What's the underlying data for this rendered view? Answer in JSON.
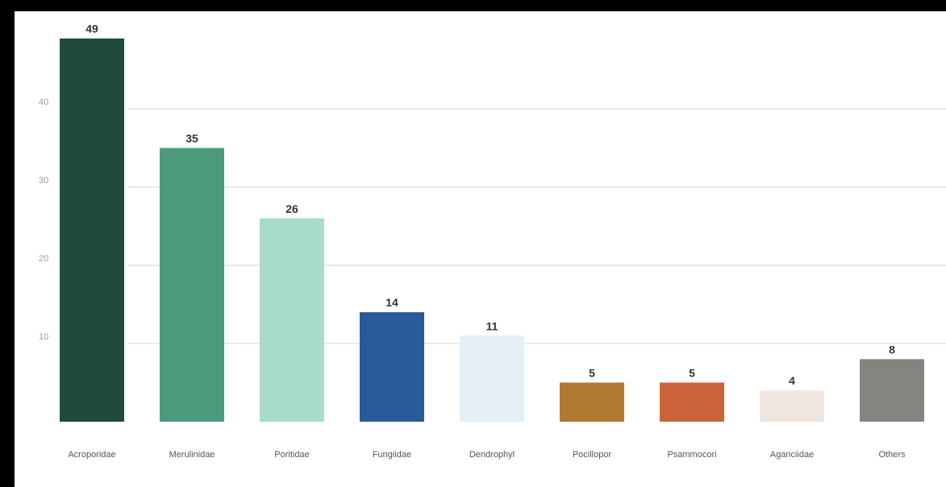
{
  "chart_data": {
    "type": "bar",
    "title": "",
    "xlabel": "",
    "ylabel": "",
    "categories": [
      "Acroporidae",
      "Merulinidae",
      "Poritidae",
      "Fungiidae",
      "Dendrophyl",
      "Pocillopor",
      "Psammocori",
      "Agariciidae",
      "Others"
    ],
    "values": [
      49,
      35,
      26,
      14,
      11,
      5,
      5,
      4,
      8
    ],
    "colors": [
      "#1f4a3e",
      "#4a9b7c",
      "#a8dcc8",
      "#2a5a9a",
      "#e6eef6",
      "#b07a30",
      "#c9643a",
      "#f0e6e0",
      "#858580"
    ],
    "value_labels": [
      "49",
      "35",
      "26",
      "14",
      "11",
      "5",
      "5",
      "4",
      "8"
    ],
    "y_ticks": [
      10,
      20,
      30,
      40
    ],
    "y_tick_labels": [
      "10",
      "20",
      "30",
      "40"
    ],
    "ylim": [
      0,
      50
    ],
    "grid": true,
    "legend": "none"
  }
}
